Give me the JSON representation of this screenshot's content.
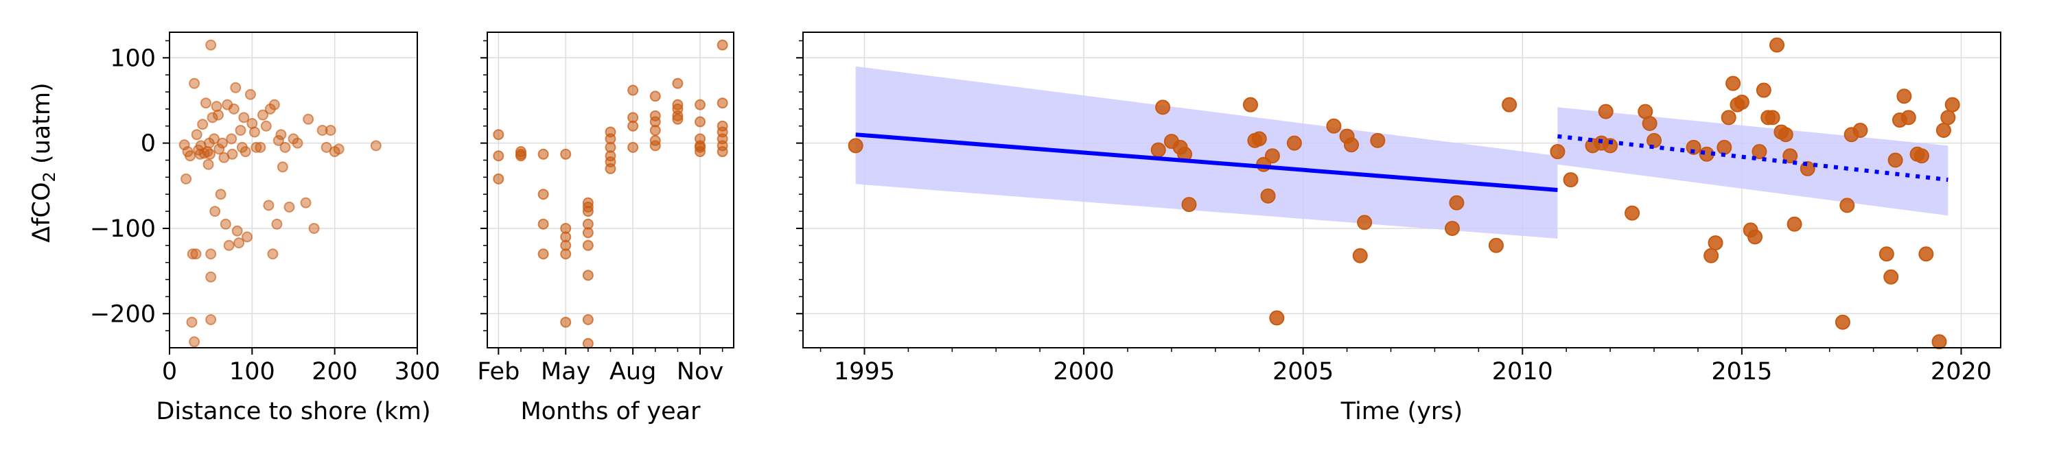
{
  "figure": {
    "ylabel_prefix": "ΔfCO",
    "ylabel_sub": "2",
    "ylabel_suffix": " (uatm)"
  },
  "colors": {
    "points": "#c8590f",
    "trend": "#0000ff",
    "ci_band": "#ccccff",
    "grid": "#dddddd"
  },
  "chart_data": [
    {
      "type": "scatter",
      "xlabel": "Distance to shore (km)",
      "ylabel": "ΔfCO2 (uatm)",
      "xlim": [
        0,
        300
      ],
      "ylim": [
        -240,
        130
      ],
      "xticks": [
        0,
        100,
        200,
        300
      ],
      "xtick_labels": [
        "0",
        "100",
        "200",
        "300"
      ],
      "yticks": [
        -200,
        -100,
        0,
        100
      ],
      "ytick_labels": [
        "−200",
        "−100",
        "0",
        "100"
      ],
      "grid": true,
      "points": [
        [
          18,
          -2
        ],
        [
          20,
          -42
        ],
        [
          22,
          -10
        ],
        [
          25,
          -15
        ],
        [
          27,
          -210
        ],
        [
          28,
          -130
        ],
        [
          30,
          -233
        ],
        [
          30,
          70
        ],
        [
          32,
          -130
        ],
        [
          33,
          10
        ],
        [
          35,
          -8
        ],
        [
          37,
          -13
        ],
        [
          38,
          -3
        ],
        [
          40,
          22
        ],
        [
          42,
          -12
        ],
        [
          44,
          47
        ],
        [
          46,
          -10
        ],
        [
          47,
          -25
        ],
        [
          48,
          0
        ],
        [
          49,
          -13
        ],
        [
          50,
          -157
        ],
        [
          50,
          -207
        ],
        [
          50,
          -130
        ],
        [
          50,
          115
        ],
        [
          52,
          30
        ],
        [
          54,
          5
        ],
        [
          55,
          -80
        ],
        [
          57,
          43
        ],
        [
          59,
          33
        ],
        [
          60,
          -7
        ],
        [
          62,
          -60
        ],
        [
          64,
          0
        ],
        [
          66,
          -17
        ],
        [
          68,
          -95
        ],
        [
          70,
          45
        ],
        [
          72,
          -120
        ],
        [
          75,
          5
        ],
        [
          76,
          -13
        ],
        [
          78,
          40
        ],
        [
          80,
          65
        ],
        [
          82,
          -103
        ],
        [
          84,
          -117
        ],
        [
          86,
          15
        ],
        [
          88,
          -5
        ],
        [
          90,
          30
        ],
        [
          92,
          -10
        ],
        [
          94,
          -110
        ],
        [
          98,
          57
        ],
        [
          100,
          23
        ],
        [
          103,
          13
        ],
        [
          105,
          -5
        ],
        [
          110,
          -5
        ],
        [
          113,
          33
        ],
        [
          117,
          20
        ],
        [
          120,
          -73
        ],
        [
          122,
          40
        ],
        [
          125,
          -130
        ],
        [
          127,
          45
        ],
        [
          130,
          -95
        ],
        [
          132,
          3
        ],
        [
          135,
          10
        ],
        [
          137,
          -28
        ],
        [
          140,
          -5
        ],
        [
          145,
          -75
        ],
        [
          150,
          5
        ],
        [
          155,
          0
        ],
        [
          165,
          -70
        ],
        [
          168,
          28
        ],
        [
          175,
          -100
        ],
        [
          185,
          15
        ],
        [
          190,
          -5
        ],
        [
          195,
          15
        ],
        [
          200,
          -10
        ],
        [
          205,
          -7
        ],
        [
          250,
          -3
        ]
      ]
    },
    {
      "type": "scatter",
      "xlabel": "Months of year",
      "ylabel": "ΔfCO2 (uatm)",
      "xlim": [
        1.5,
        12.5
      ],
      "ylim": [
        -240,
        130
      ],
      "xticks": [
        2,
        5,
        8,
        11
      ],
      "xtick_labels": [
        "Feb",
        "May",
        "Aug",
        "Nov"
      ],
      "grid": true,
      "points": [
        [
          2,
          10
        ],
        [
          2,
          -15
        ],
        [
          2,
          -42
        ],
        [
          3,
          -15
        ],
        [
          3,
          -10
        ],
        [
          3,
          -13
        ],
        [
          4,
          -13
        ],
        [
          4,
          -60
        ],
        [
          4,
          -95
        ],
        [
          4,
          -130
        ],
        [
          5,
          -13
        ],
        [
          5,
          -100
        ],
        [
          5,
          -110
        ],
        [
          5,
          -120
        ],
        [
          5,
          -130
        ],
        [
          5,
          -210
        ],
        [
          6,
          -70
        ],
        [
          6,
          -75
        ],
        [
          6,
          -80
        ],
        [
          6,
          -95
        ],
        [
          6,
          -105
        ],
        [
          6,
          -120
        ],
        [
          6,
          -155
        ],
        [
          6,
          -207
        ],
        [
          6,
          -235
        ],
        [
          7,
          -30
        ],
        [
          7,
          -22
        ],
        [
          7,
          -15
        ],
        [
          7,
          -5
        ],
        [
          7,
          5
        ],
        [
          7,
          13
        ],
        [
          8,
          -5
        ],
        [
          8,
          20
        ],
        [
          8,
          30
        ],
        [
          8,
          62
        ],
        [
          9,
          -3
        ],
        [
          9,
          3
        ],
        [
          9,
          15
        ],
        [
          9,
          25
        ],
        [
          9,
          32
        ],
        [
          9,
          55
        ],
        [
          10,
          28
        ],
        [
          10,
          32
        ],
        [
          10,
          40
        ],
        [
          10,
          45
        ],
        [
          10,
          70
        ],
        [
          11,
          -10
        ],
        [
          11,
          -3
        ],
        [
          11,
          5
        ],
        [
          11,
          25
        ],
        [
          11,
          45
        ],
        [
          11,
          -5
        ],
        [
          12,
          -10
        ],
        [
          12,
          -3
        ],
        [
          12,
          5
        ],
        [
          12,
          13
        ],
        [
          12,
          20
        ],
        [
          12,
          47
        ],
        [
          12,
          115
        ]
      ]
    },
    {
      "type": "scatter",
      "xlabel": "Time (yrs)",
      "ylabel": "ΔfCO2 (uatm)",
      "xlim": [
        1993.6,
        2020.9
      ],
      "ylim": [
        -240,
        130
      ],
      "xticks": [
        1995,
        2000,
        2005,
        2010,
        2015,
        2020
      ],
      "xtick_labels": [
        "1995",
        "2000",
        "2005",
        "2010",
        "2015",
        "2020"
      ],
      "grid": true,
      "points": [
        [
          1994.8,
          -3
        ],
        [
          2001.7,
          -8
        ],
        [
          2001.8,
          42
        ],
        [
          2002.0,
          2
        ],
        [
          2002.2,
          -5
        ],
        [
          2002.3,
          -13
        ],
        [
          2002.4,
          -72
        ],
        [
          2003.8,
          45
        ],
        [
          2003.9,
          3
        ],
        [
          2004.0,
          5
        ],
        [
          2004.1,
          -25
        ],
        [
          2004.2,
          -62
        ],
        [
          2004.3,
          -15
        ],
        [
          2004.4,
          -205
        ],
        [
          2004.8,
          0
        ],
        [
          2005.7,
          20
        ],
        [
          2006.0,
          8
        ],
        [
          2006.1,
          -2
        ],
        [
          2006.3,
          -132
        ],
        [
          2006.4,
          -93
        ],
        [
          2006.7,
          3
        ],
        [
          2008.4,
          -100
        ],
        [
          2008.5,
          -70
        ],
        [
          2009.4,
          -120
        ],
        [
          2009.7,
          45
        ],
        [
          2010.8,
          -10
        ],
        [
          2011.1,
          -43
        ],
        [
          2011.6,
          -3
        ],
        [
          2011.8,
          0
        ],
        [
          2011.9,
          37
        ],
        [
          2012.0,
          -3
        ],
        [
          2012.5,
          -82
        ],
        [
          2012.8,
          37
        ],
        [
          2012.9,
          23
        ],
        [
          2013.0,
          3
        ],
        [
          2013.9,
          -5
        ],
        [
          2014.2,
          -13
        ],
        [
          2014.3,
          -132
        ],
        [
          2014.4,
          -117
        ],
        [
          2014.6,
          -5
        ],
        [
          2014.7,
          30
        ],
        [
          2014.8,
          70
        ],
        [
          2014.9,
          45
        ],
        [
          2015.0,
          48
        ],
        [
          2015.2,
          -102
        ],
        [
          2015.3,
          -110
        ],
        [
          2015.4,
          -10
        ],
        [
          2015.5,
          62
        ],
        [
          2015.6,
          30
        ],
        [
          2015.7,
          30
        ],
        [
          2015.8,
          115
        ],
        [
          2015.9,
          13
        ],
        [
          2016.0,
          10
        ],
        [
          2016.1,
          -15
        ],
        [
          2016.2,
          -95
        ],
        [
          2016.5,
          -30
        ],
        [
          2017.3,
          -210
        ],
        [
          2017.4,
          -73
        ],
        [
          2017.5,
          10
        ],
        [
          2017.7,
          15
        ],
        [
          2018.3,
          -130
        ],
        [
          2018.4,
          -157
        ],
        [
          2018.5,
          -20
        ],
        [
          2018.6,
          27
        ],
        [
          2018.7,
          55
        ],
        [
          2018.8,
          30
        ],
        [
          2019.0,
          -13
        ],
        [
          2019.1,
          -15
        ],
        [
          2019.2,
          -130
        ],
        [
          2019.5,
          -233
        ],
        [
          2019.6,
          15
        ],
        [
          2019.7,
          30
        ],
        [
          2019.8,
          45
        ]
      ],
      "trend_lines": [
        {
          "style": "solid",
          "x": [
            1994.8,
            2010.8
          ],
          "y": [
            10,
            -55
          ]
        },
        {
          "style": "dotted",
          "x": [
            2010.8,
            2019.7
          ],
          "y": [
            8,
            -43
          ]
        }
      ],
      "confidence_bands": [
        {
          "x": [
            1994.8,
            2010.8
          ],
          "upper": [
            90,
            -15
          ],
          "lower": [
            -48,
            -112
          ]
        },
        {
          "x": [
            2010.8,
            2019.7
          ],
          "upper": [
            42,
            -3
          ],
          "lower": [
            -25,
            -85
          ]
        }
      ]
    }
  ]
}
